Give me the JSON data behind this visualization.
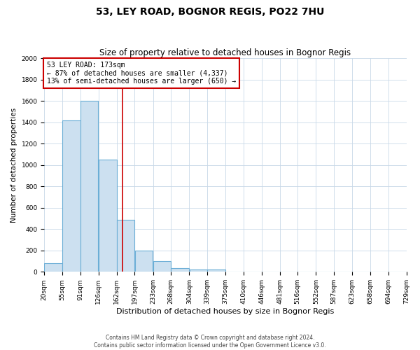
{
  "title": "53, LEY ROAD, BOGNOR REGIS, PO22 7HU",
  "subtitle": "Size of property relative to detached houses in Bognor Regis",
  "xlabel": "Distribution of detached houses by size in Bognor Regis",
  "ylabel": "Number of detached properties",
  "bin_edges": [
    20,
    55,
    91,
    126,
    162,
    197,
    233,
    268,
    304,
    339,
    375,
    410,
    446,
    481,
    516,
    552,
    587,
    623,
    658,
    694,
    729
  ],
  "bar_heights": [
    80,
    1420,
    1600,
    1050,
    490,
    200,
    100,
    35,
    20,
    20,
    0,
    0,
    0,
    0,
    0,
    0,
    0,
    0,
    0,
    0
  ],
  "bar_color": "#cce0f0",
  "bar_edge_color": "#6baed6",
  "ylim": [
    0,
    2000
  ],
  "yticks": [
    0,
    200,
    400,
    600,
    800,
    1000,
    1200,
    1400,
    1600,
    1800,
    2000
  ],
  "property_value": 173,
  "vline_color": "#cc0000",
  "annotation_line1": "53 LEY ROAD: 173sqm",
  "annotation_line2": "← 87% of detached houses are smaller (4,337)",
  "annotation_line3": "13% of semi-detached houses are larger (650) →",
  "annotation_box_color": "#cc0000",
  "background_color": "#ffffff",
  "grid_color": "#c8d8e8",
  "footer_line1": "Contains HM Land Registry data © Crown copyright and database right 2024.",
  "footer_line2": "Contains public sector information licensed under the Open Government Licence v3.0.",
  "title_fontsize": 10,
  "subtitle_fontsize": 8.5,
  "xlabel_fontsize": 8,
  "ylabel_fontsize": 7.5,
  "tick_fontsize": 6.5,
  "footer_fontsize": 5.5
}
